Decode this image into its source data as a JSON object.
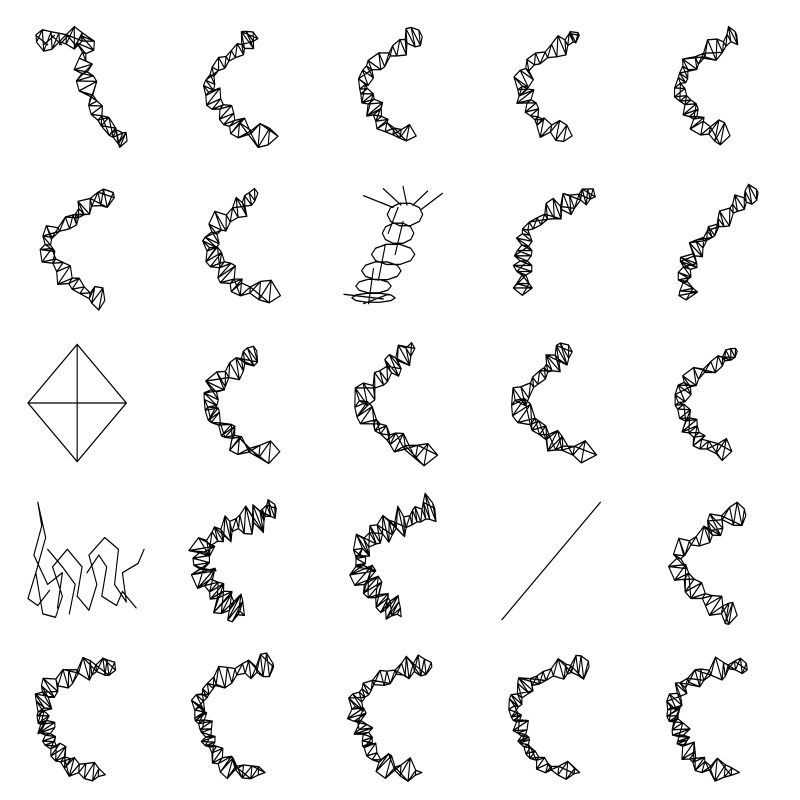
{
  "figure": {
    "title": "",
    "rows": 5,
    "columns": 5,
    "line_color": "#000000",
    "background": "#ffffff",
    "panels": [
      {
        "name": "panel-1",
        "shape": "mesh-strip",
        "pattern": "flower-tail"
      },
      {
        "name": "panel-2",
        "shape": "mesh-strip",
        "pattern": "c-wide"
      },
      {
        "name": "panel-3",
        "shape": "mesh-strip",
        "pattern": "c-narrow"
      },
      {
        "name": "panel-4",
        "shape": "mesh-strip",
        "pattern": "c-narrow"
      },
      {
        "name": "panel-5",
        "shape": "mesh-strip",
        "pattern": "c-narrow"
      },
      {
        "name": "panel-6",
        "shape": "mesh-strip",
        "pattern": "c-zigzag"
      },
      {
        "name": "panel-7",
        "shape": "mesh-strip",
        "pattern": "c-wide"
      },
      {
        "name": "panel-8",
        "shape": "ring-stack",
        "pattern": "spirals"
      },
      {
        "name": "panel-9",
        "shape": "mesh-strip",
        "pattern": "funnel"
      },
      {
        "name": "panel-10",
        "shape": "mesh-strip",
        "pattern": "diagonal-chain"
      },
      {
        "name": "panel-11",
        "shape": "diamond",
        "pattern": "cross"
      },
      {
        "name": "panel-12",
        "shape": "mesh-strip",
        "pattern": "c-wide"
      },
      {
        "name": "panel-13",
        "shape": "mesh-strip",
        "pattern": "c-zigzag-dense"
      },
      {
        "name": "panel-14",
        "shape": "mesh-strip",
        "pattern": "c-zigzag-dense"
      },
      {
        "name": "panel-15",
        "shape": "mesh-strip",
        "pattern": "c-narrow"
      },
      {
        "name": "panel-16",
        "shape": "tangle",
        "pattern": "loops"
      },
      {
        "name": "panel-17",
        "shape": "mesh-strip",
        "pattern": "arc-dense"
      },
      {
        "name": "panel-18",
        "shape": "mesh-strip",
        "pattern": "arc-dense"
      },
      {
        "name": "panel-19",
        "shape": "line",
        "pattern": "diagonal"
      },
      {
        "name": "panel-20",
        "shape": "mesh-strip",
        "pattern": "c-zigzag"
      },
      {
        "name": "panel-21",
        "shape": "mesh-strip",
        "pattern": "c-full"
      },
      {
        "name": "panel-22",
        "shape": "mesh-strip",
        "pattern": "c-full"
      },
      {
        "name": "panel-23",
        "shape": "mesh-strip",
        "pattern": "c-full"
      },
      {
        "name": "panel-24",
        "shape": "mesh-strip",
        "pattern": "c-full"
      },
      {
        "name": "panel-25",
        "shape": "mesh-strip",
        "pattern": "c-full"
      }
    ]
  }
}
